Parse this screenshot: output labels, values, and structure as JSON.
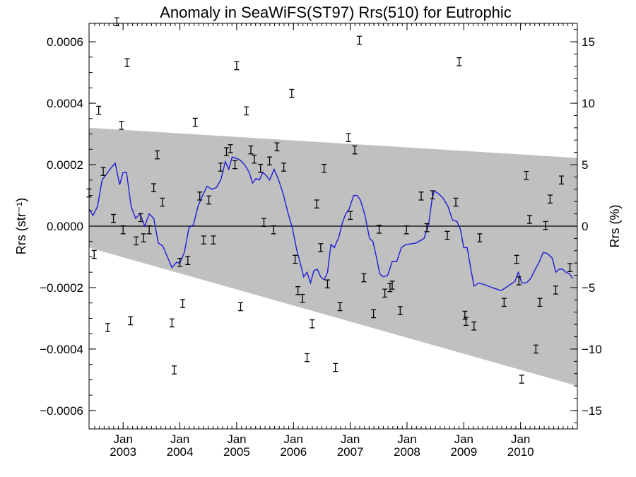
{
  "chart_data": {
    "type": "scatter",
    "title": "Anomaly in SeaWiFS(ST97) Rrs(510) for Eutrophic",
    "ylabel_left": "Rrs (str⁻¹)",
    "ylabel_right": "Rrs (%)",
    "xlim": [
      2002.4,
      2011.0
    ],
    "ylim": [
      -0.00066,
      0.00066
    ],
    "ylim_right_percent": [
      -16.5,
      16.5
    ],
    "y_ticks_left": [
      {
        "value": 0.0006,
        "label": "0.0006"
      },
      {
        "value": 0.0004,
        "label": "0.0004"
      },
      {
        "value": 0.0002,
        "label": "0.0002"
      },
      {
        "value": 0.0,
        "label": "0.0000"
      },
      {
        "value": -0.0002,
        "label": "−0.0002"
      },
      {
        "value": -0.0004,
        "label": "−0.0004"
      },
      {
        "value": -0.0006,
        "label": "−0.0006"
      }
    ],
    "y_ticks_right": [
      {
        "value": 15,
        "label": "15"
      },
      {
        "value": 10,
        "label": "10"
      },
      {
        "value": 5,
        "label": "5"
      },
      {
        "value": 0,
        "label": "0"
      },
      {
        "value": -5,
        "label": "−5"
      },
      {
        "value": -10,
        "label": "−10"
      },
      {
        "value": -15,
        "label": "−15"
      }
    ],
    "x_ticks": [
      {
        "value": 2003.0,
        "month": "Jan",
        "year": "2003"
      },
      {
        "value": 2004.0,
        "month": "Jan",
        "year": "2004"
      },
      {
        "value": 2005.0,
        "month": "Jan",
        "year": "2005"
      },
      {
        "value": 2006.0,
        "month": "Jan",
        "year": "2006"
      },
      {
        "value": 2007.0,
        "month": "Jan",
        "year": "2007"
      },
      {
        "value": 2008.0,
        "month": "Jan",
        "year": "2008"
      },
      {
        "value": 2009.0,
        "month": "Jan",
        "year": "2009"
      },
      {
        "value": 2010.0,
        "month": "Jan",
        "year": "2010"
      }
    ],
    "error_bar_half_width": 1.3e-05,
    "uncertainty_band": {
      "color": "#c0c0c0",
      "upper": [
        [
          2002.4,
          0.00032
        ],
        [
          2011.0,
          0.000222
        ]
      ],
      "lower": [
        [
          2002.4,
          -7e-05
        ],
        [
          2011.0,
          -0.00052
        ]
      ]
    },
    "zero_line": true,
    "series": [
      {
        "style": "errorbar",
        "color": "#000000",
        "points": [
          [
            2002.4,
            0.000108
          ],
          [
            2002.49,
            -9.2e-05
          ],
          [
            2002.57,
            0.000377
          ],
          [
            2002.65,
            0.000178
          ],
          [
            2002.73,
            -0.00033
          ],
          [
            2002.83,
            2.5e-05
          ],
          [
            2002.89,
            0.000665
          ],
          [
            2002.97,
            0.000328
          ],
          [
            2003.0,
            -1.2e-05
          ],
          [
            2003.07,
            0.000532
          ],
          [
            2003.13,
            -0.000308
          ],
          [
            2003.23,
            -4.8e-05
          ],
          [
            2003.31,
            2.8e-05
          ],
          [
            2003.36,
            -3.8e-05
          ],
          [
            2003.46,
            -1.2e-05
          ],
          [
            2003.54,
            0.000125
          ],
          [
            2003.6,
            0.000232
          ],
          [
            2003.69,
            7.8e-05
          ],
          [
            2003.86,
            -0.000315
          ],
          [
            2003.9,
            -0.000468
          ],
          [
            2004.0,
            -0.000118
          ],
          [
            2004.05,
            -0.000252
          ],
          [
            2004.14,
            -0.000112
          ],
          [
            2004.27,
            0.000338
          ],
          [
            2004.35,
            9.8e-05
          ],
          [
            2004.42,
            -4.5e-05
          ],
          [
            2004.51,
            8.5e-05
          ],
          [
            2004.59,
            -4.5e-05
          ],
          [
            2004.72,
            0.000192
          ],
          [
            2004.82,
            0.000242
          ],
          [
            2004.89,
            0.000252
          ],
          [
            2004.97,
            0.0002
          ],
          [
            2005.0,
            0.000522
          ],
          [
            2005.07,
            -0.000262
          ],
          [
            2005.17,
            0.000375
          ],
          [
            2005.25,
            0.000248
          ],
          [
            2005.31,
            0.000218
          ],
          [
            2005.42,
            0.000188
          ],
          [
            2005.48,
            1.2e-05
          ],
          [
            2005.58,
            0.000212
          ],
          [
            2005.65,
            -1.2e-05
          ],
          [
            2005.71,
            0.000258
          ],
          [
            2005.83,
            0.000192
          ],
          [
            2005.97,
            0.000432
          ],
          [
            2006.03,
            -0.000108
          ],
          [
            2006.08,
            -0.00021
          ],
          [
            2006.16,
            -0.000235
          ],
          [
            2006.24,
            -0.000428
          ],
          [
            2006.33,
            -0.000318
          ],
          [
            2006.41,
            7.2e-05
          ],
          [
            2006.48,
            -7e-05
          ],
          [
            2006.54,
            0.000188
          ],
          [
            2006.6,
            -0.000188
          ],
          [
            2006.74,
            -0.00046
          ],
          [
            2006.82,
            -0.000262
          ],
          [
            2006.97,
            0.000288
          ],
          [
            2007.0,
            3.5e-05
          ],
          [
            2007.08,
            0.000248
          ],
          [
            2007.16,
            0.000605
          ],
          [
            2007.24,
            -0.000168
          ],
          [
            2007.41,
            -0.000285
          ],
          [
            2007.51,
            -1e-05
          ],
          [
            2007.61,
            -0.000218
          ],
          [
            2007.7,
            -0.0002
          ],
          [
            2007.74,
            -0.000192
          ],
          [
            2007.88,
            -0.000275
          ],
          [
            2007.99,
            -1.2e-05
          ],
          [
            2008.25,
            9.8e-05
          ],
          [
            2008.35,
            -5e-06
          ],
          [
            2008.45,
            0.000102
          ],
          [
            2008.71,
            -3e-05
          ],
          [
            2008.86,
            7.8e-05
          ],
          [
            2008.92,
            0.000535
          ],
          [
            2009.02,
            -0.00029
          ],
          [
            2009.04,
            -0.00031
          ],
          [
            2009.18,
            -0.000325
          ],
          [
            2009.28,
            -3.8e-05
          ],
          [
            2009.71,
            -0.000248
          ],
          [
            2009.93,
            -0.000108
          ],
          [
            2009.97,
            -0.000178
          ],
          [
            2010.02,
            -0.000498
          ],
          [
            2010.1,
            0.000165
          ],
          [
            2010.16,
            2.2e-05
          ],
          [
            2010.27,
            -0.0004
          ],
          [
            2010.34,
            -0.000248
          ],
          [
            2010.44,
            2e-06
          ],
          [
            2010.52,
            8.8e-05
          ],
          [
            2010.62,
            -0.000208
          ],
          [
            2010.72,
            0.00015
          ],
          [
            2010.87,
            -0.000135
          ]
        ]
      },
      {
        "style": "line",
        "color": "#1c1cd6",
        "points": [
          [
            2002.4,
            5.5e-05
          ],
          [
            2002.47,
            3.5e-05
          ],
          [
            2002.55,
            6.5e-05
          ],
          [
            2002.63,
            0.00015
          ],
          [
            2002.71,
            0.00017
          ],
          [
            2002.79,
            0.00019
          ],
          [
            2002.86,
            0.000205
          ],
          [
            2002.94,
            0.000135
          ],
          [
            2003.0,
            0.000175
          ],
          [
            2003.06,
            0.000175
          ],
          [
            2003.14,
            6.5e-05
          ],
          [
            2003.22,
            2.5e-05
          ],
          [
            2003.3,
            4e-05
          ],
          [
            2003.38,
            0.0
          ],
          [
            2003.46,
            4e-05
          ],
          [
            2003.54,
            2.5e-05
          ],
          [
            2003.62,
            -5.5e-05
          ],
          [
            2003.7,
            -6.5e-05
          ],
          [
            2003.78,
            -0.0001
          ],
          [
            2003.86,
            -0.000135
          ],
          [
            2003.94,
            -0.000118
          ],
          [
            2004.0,
            -0.00012
          ],
          [
            2004.08,
            -8.5e-05
          ],
          [
            2004.16,
            -5e-06
          ],
          [
            2004.24,
            5e-06
          ],
          [
            2004.32,
            6.5e-05
          ],
          [
            2004.4,
            0.0001
          ],
          [
            2004.48,
            0.00013
          ],
          [
            2004.56,
            0.00012
          ],
          [
            2004.64,
            0.000125
          ],
          [
            2004.72,
            0.00015
          ],
          [
            2004.8,
            0.00021
          ],
          [
            2004.86,
            0.000185
          ],
          [
            2004.92,
            0.000225
          ],
          [
            2005.0,
            0.00022
          ],
          [
            2005.06,
            0.000215
          ],
          [
            2005.14,
            0.0002
          ],
          [
            2005.22,
            0.000175
          ],
          [
            2005.28,
            0.00014
          ],
          [
            2005.34,
            0.000155
          ],
          [
            2005.4,
            0.00015
          ],
          [
            2005.46,
            0.000175
          ],
          [
            2005.52,
            0.000165
          ],
          [
            2005.58,
            0.00015
          ],
          [
            2005.66,
            0.000185
          ],
          [
            2005.74,
            0.00015
          ],
          [
            2005.82,
            0.000105
          ],
          [
            2005.9,
            4.5e-05
          ],
          [
            2005.98,
            -5e-06
          ],
          [
            2006.06,
            -8e-05
          ],
          [
            2006.12,
            -0.00012
          ],
          [
            2006.18,
            -0.000165
          ],
          [
            2006.24,
            -0.00015
          ],
          [
            2006.3,
            -0.000185
          ],
          [
            2006.36,
            -0.000145
          ],
          [
            2006.42,
            -0.00014
          ],
          [
            2006.48,
            -0.000165
          ],
          [
            2006.54,
            -0.000175
          ],
          [
            2006.6,
            -0.00015
          ],
          [
            2006.66,
            -6e-05
          ],
          [
            2006.72,
            -7e-05
          ],
          [
            2006.8,
            -3.5e-05
          ],
          [
            2006.86,
            1e-05
          ],
          [
            2006.92,
            4e-05
          ],
          [
            2006.98,
            5.5e-05
          ],
          [
            2007.06,
            0.0001
          ],
          [
            2007.12,
            0.0001
          ],
          [
            2007.18,
            8.5e-05
          ],
          [
            2007.26,
            3.5e-05
          ],
          [
            2007.34,
            -4e-05
          ],
          [
            2007.4,
            -5e-05
          ],
          [
            2007.46,
            -0.0001
          ],
          [
            2007.52,
            -0.000155
          ],
          [
            2007.58,
            -0.000165
          ],
          [
            2007.66,
            -0.00016
          ],
          [
            2007.74,
            -0.000115
          ],
          [
            2007.82,
            -0.000115
          ],
          [
            2007.9,
            -7e-05
          ],
          [
            2007.98,
            -6e-05
          ],
          [
            2008.16,
            -5.5e-05
          ],
          [
            2008.3,
            -4e-05
          ],
          [
            2008.38,
            5e-06
          ],
          [
            2008.44,
            8.5e-05
          ],
          [
            2008.48,
            0.000115
          ],
          [
            2008.56,
            0.000105
          ],
          [
            2008.64,
            9e-05
          ],
          [
            2008.72,
            6.5e-05
          ],
          [
            2008.8,
            2e-05
          ],
          [
            2008.88,
            1.5e-05
          ],
          [
            2008.94,
            -1e-05
          ],
          [
            2009.0,
            -7e-05
          ],
          [
            2009.06,
            -7e-05
          ],
          [
            2009.12,
            -0.000135
          ],
          [
            2009.18,
            -0.000195
          ],
          [
            2009.26,
            -0.000185
          ],
          [
            2009.36,
            -0.00019
          ],
          [
            2009.5,
            -0.0002
          ],
          [
            2009.66,
            -0.00021
          ],
          [
            2009.78,
            -0.000195
          ],
          [
            2009.9,
            -0.00018
          ],
          [
            2009.96,
            -0.00015
          ],
          [
            2010.02,
            -0.000185
          ],
          [
            2010.1,
            -0.000185
          ],
          [
            2010.18,
            -0.00017
          ],
          [
            2010.26,
            -0.00014
          ],
          [
            2010.32,
            -0.00012
          ],
          [
            2010.4,
            -8.5e-05
          ],
          [
            2010.48,
            -9e-05
          ],
          [
            2010.56,
            -0.000105
          ],
          [
            2010.62,
            -0.00015
          ],
          [
            2010.68,
            -0.00014
          ],
          [
            2010.74,
            -0.00014
          ],
          [
            2010.8,
            -0.00015
          ],
          [
            2010.86,
            -0.000155
          ],
          [
            2010.92,
            -0.00017
          ]
        ]
      }
    ]
  }
}
